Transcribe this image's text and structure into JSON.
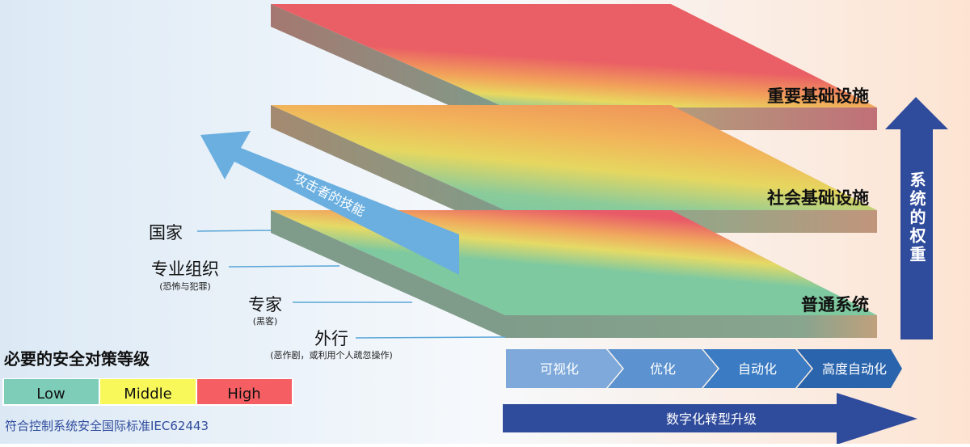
{
  "layers": [
    {
      "label": "重要基础设施"
    },
    {
      "label": "社会基础设施"
    },
    {
      "label": "普通系统"
    }
  ],
  "attacker_arrow": {
    "label": "攻击者的技能",
    "color": "#6aafe0"
  },
  "attackers": [
    {
      "label": "国家",
      "sub": ""
    },
    {
      "label": "专业组织",
      "sub": "(恐怖与犯罪)"
    },
    {
      "label": "专家",
      "sub": "(黑客)"
    },
    {
      "label": "外行",
      "sub": "(恶作剧，或利用个人疏忽操作)"
    }
  ],
  "weight_arrow": {
    "label": "系统的权重",
    "color": "#2f4b9c"
  },
  "stages": [
    "可视化",
    "优化",
    "自动化",
    "高度自动化"
  ],
  "transform_arrow": {
    "label": "数字化转型升级",
    "color": "#2f4b9c"
  },
  "legend": {
    "title": "必要的安全对策等级",
    "items": [
      {
        "label": "Low",
        "color": "#7ecdb9"
      },
      {
        "label": "Middle",
        "color": "#f8f85a"
      },
      {
        "label": "High",
        "color": "#f55f63"
      }
    ]
  },
  "footnote": "符合控制系统安全国际标准IEC62443"
}
